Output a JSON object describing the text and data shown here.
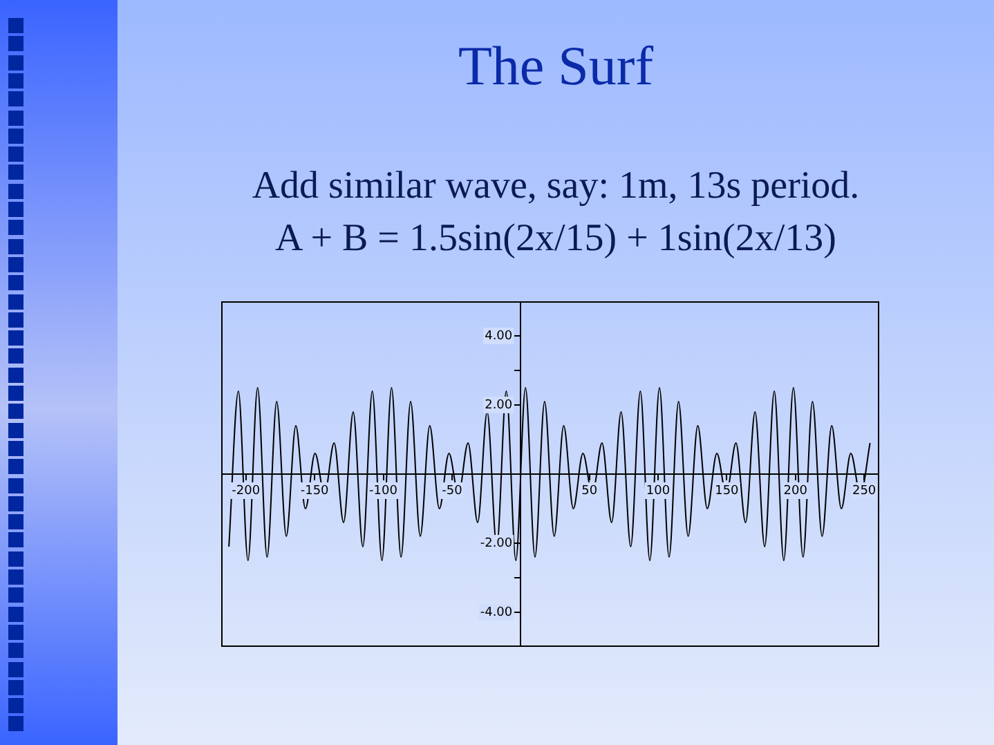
{
  "chart_data": {
    "type": "line",
    "title": "The Surf",
    "subtitle": "Add  similar wave, say: 1m, 13s period.\nA + B = 1.5sin(2x/15) + 1sin(2x/13)",
    "x": [
      -212.4,
      -205.5,
      -198.5,
      -191.5,
      -184.6,
      -177.6,
      -170.6,
      -163.7,
      -156.7,
      -149.7,
      -142.8,
      -135.8,
      -128.9,
      -121.9,
      -114.9,
      -108.0,
      -101.0,
      -94.0,
      -87.1,
      -80.1,
      -73.1,
      -66.2,
      -59.2,
      -52.2,
      -45.3,
      -38.3,
      -31.3,
      -24.4,
      -17.4,
      -10.5,
      -3.5,
      3.5,
      10.4,
      17.4,
      24.4,
      31.3,
      38.3,
      45.3,
      52.2,
      59.2,
      66.2,
      73.1,
      80.1,
      87.1,
      94.0,
      101.0,
      108.0,
      114.9,
      121.9,
      128.9,
      135.8,
      142.8,
      149.7,
      156.7,
      163.7,
      170.6,
      177.6,
      184.6,
      191.5,
      198.5,
      205.5,
      212.4,
      219.4,
      226.4,
      233.4,
      240.3,
      247.3,
      254.3
    ],
    "series": [
      {
        "color": "#000000",
        "values": [
          -2.1,
          2.4,
          -2.5,
          2.5,
          -2.4,
          2.1,
          -1.8,
          1.4,
          -1.0,
          0.6,
          -0.6,
          0.9,
          -1.4,
          1.8,
          -2.1,
          2.4,
          -2.5,
          2.5,
          -2.4,
          2.1,
          -1.8,
          1.4,
          -1.0,
          0.6,
          -0.6,
          0.9,
          -1.4,
          1.8,
          -2.1,
          2.4,
          -2.5,
          2.5,
          -2.4,
          2.1,
          -1.8,
          1.4,
          -1.0,
          0.6,
          -0.6,
          0.9,
          -1.4,
          1.8,
          -2.1,
          2.4,
          -2.5,
          2.5,
          -2.4,
          2.1,
          -1.8,
          1.4,
          -1.0,
          0.6,
          -0.6,
          0.9,
          -1.4,
          1.8,
          -2.1,
          2.4,
          -2.5,
          2.5,
          -2.4,
          2.1,
          -1.8,
          1.4,
          -1.0,
          0.6,
          -0.6,
          0.9
        ]
      }
    ],
    "xlim": [
      -218,
      261
    ],
    "xticks": [
      -200,
      -150,
      -100,
      -50,
      {
        "value": 0,
        "label": null
      },
      50,
      100,
      150,
      200,
      250
    ],
    "ylim": [
      -5,
      5
    ],
    "yticks": [
      {
        "value": -4,
        "label": "-4.00"
      },
      {
        "value": -3,
        "label": null
      },
      {
        "value": -2,
        "label": "-2.00"
      },
      {
        "value": 2,
        "label": "2.00"
      },
      {
        "value": 3,
        "label": null
      },
      {
        "value": 4,
        "label": "4.00"
      }
    ],
    "grid": false,
    "legend": false
  }
}
